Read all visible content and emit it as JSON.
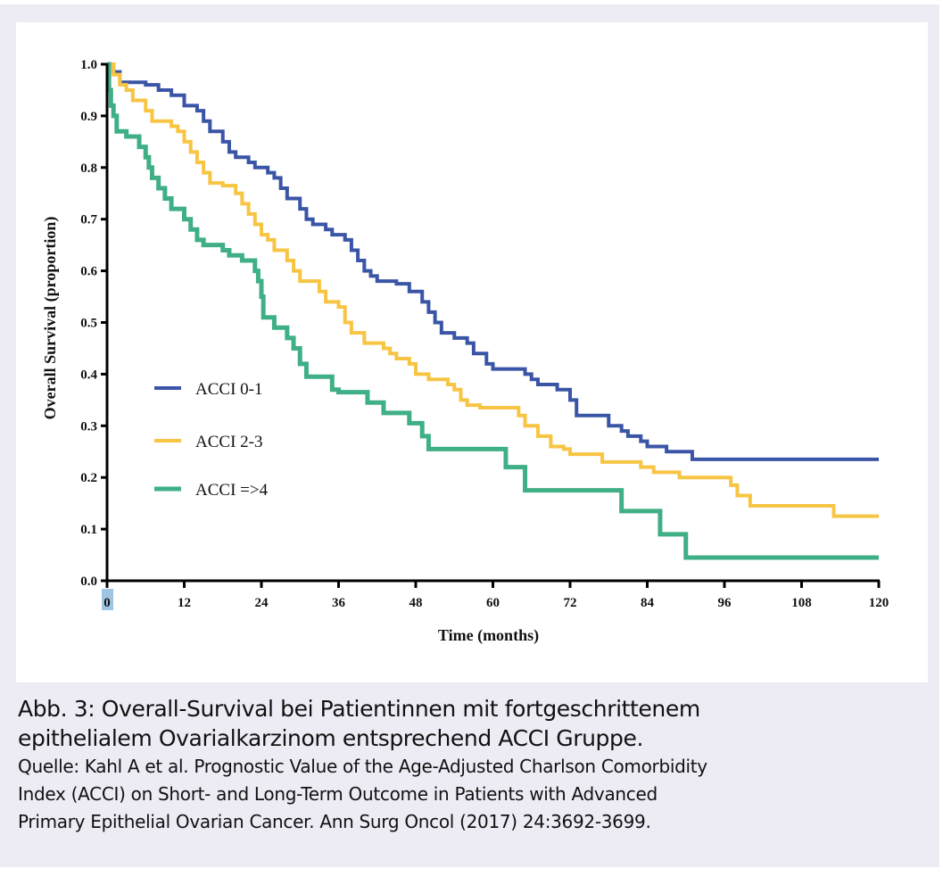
{
  "figure": {
    "caption_title_line1": "Abb. 3: Overall-Survival bei Patientinnen mit fortgeschrittenem",
    "caption_title_line2": "epithelialem Ovarialkarzinom entsprechend ACCI Gruppe.",
    "source_line1": "Quelle: Kahl A et al. Prognostic Value of the Age-Adjusted Charlson Comorbidity",
    "source_line2": "Index (ACCI) on Short- and Long-Term Outcome in Patients with Advanced",
    "source_line3": "Primary Epithelial Ovarian Cancer. Ann Surg Oncol (2017) 24:3692-3699."
  },
  "chart_data": {
    "type": "line",
    "subtype": "kaplan-meier-step",
    "title": "",
    "xlabel": "Time (months)",
    "ylabel": "Overall Survival (proportion)",
    "xlim": [
      0,
      120
    ],
    "ylim": [
      0.0,
      1.0
    ],
    "xticks": [
      0,
      12,
      24,
      36,
      48,
      60,
      72,
      84,
      96,
      108,
      120
    ],
    "xtick_labels": [
      "0",
      "12",
      "24",
      "36",
      "48",
      "60",
      "72",
      "84",
      "96",
      "108",
      "120"
    ],
    "yticks": [
      0.0,
      0.1,
      0.2,
      0.3,
      0.4,
      0.5,
      0.6,
      0.7,
      0.8,
      0.9,
      1.0
    ],
    "ytick_labels": [
      "0.0",
      "0.1",
      "0.2",
      "0.3",
      "0.4",
      "0.5",
      "0.6",
      "0.7",
      "0.8",
      "0.9",
      "1.0"
    ],
    "highlighted_xtick": "0",
    "grid": false,
    "legend_position": "center-left",
    "series": [
      {
        "name": "ACCI 0-1",
        "color": "#3b55a6",
        "steps": [
          [
            0,
            1.0
          ],
          [
            1,
            0.985
          ],
          [
            2,
            0.965
          ],
          [
            6,
            0.96
          ],
          [
            8,
            0.95
          ],
          [
            10,
            0.94
          ],
          [
            12,
            0.92
          ],
          [
            14,
            0.91
          ],
          [
            15,
            0.89
          ],
          [
            16,
            0.87
          ],
          [
            18,
            0.85
          ],
          [
            19,
            0.83
          ],
          [
            20,
            0.82
          ],
          [
            22,
            0.81
          ],
          [
            23,
            0.8
          ],
          [
            25,
            0.79
          ],
          [
            26,
            0.78
          ],
          [
            27,
            0.76
          ],
          [
            28,
            0.74
          ],
          [
            30,
            0.72
          ],
          [
            31,
            0.7
          ],
          [
            32,
            0.69
          ],
          [
            34,
            0.68
          ],
          [
            35,
            0.67
          ],
          [
            37,
            0.66
          ],
          [
            38,
            0.64
          ],
          [
            39,
            0.62
          ],
          [
            40,
            0.6
          ],
          [
            41,
            0.59
          ],
          [
            42,
            0.58
          ],
          [
            45,
            0.575
          ],
          [
            47,
            0.56
          ],
          [
            49,
            0.54
          ],
          [
            50,
            0.52
          ],
          [
            51,
            0.5
          ],
          [
            52,
            0.48
          ],
          [
            54,
            0.47
          ],
          [
            56,
            0.46
          ],
          [
            57,
            0.44
          ],
          [
            59,
            0.42
          ],
          [
            60,
            0.41
          ],
          [
            65,
            0.4
          ],
          [
            66,
            0.39
          ],
          [
            67,
            0.38
          ],
          [
            70,
            0.37
          ],
          [
            72,
            0.35
          ],
          [
            73,
            0.32
          ],
          [
            78,
            0.3
          ],
          [
            80,
            0.29
          ],
          [
            81,
            0.28
          ],
          [
            83,
            0.27
          ],
          [
            84,
            0.26
          ],
          [
            87,
            0.25
          ],
          [
            91,
            0.235
          ],
          [
            120,
            0.235
          ]
        ]
      },
      {
        "name": "ACCI 2-3",
        "color": "#f7c543",
        "steps": [
          [
            0,
            1.0
          ],
          [
            1,
            0.98
          ],
          [
            2,
            0.96
          ],
          [
            3,
            0.95
          ],
          [
            4,
            0.93
          ],
          [
            6,
            0.91
          ],
          [
            7,
            0.89
          ],
          [
            10,
            0.88
          ],
          [
            11,
            0.87
          ],
          [
            12,
            0.85
          ],
          [
            13,
            0.83
          ],
          [
            14,
            0.81
          ],
          [
            15,
            0.79
          ],
          [
            16,
            0.77
          ],
          [
            18,
            0.765
          ],
          [
            20,
            0.75
          ],
          [
            21,
            0.73
          ],
          [
            22,
            0.71
          ],
          [
            23,
            0.69
          ],
          [
            24,
            0.67
          ],
          [
            25,
            0.66
          ],
          [
            26,
            0.64
          ],
          [
            28,
            0.62
          ],
          [
            29,
            0.6
          ],
          [
            30,
            0.58
          ],
          [
            33,
            0.56
          ],
          [
            34,
            0.54
          ],
          [
            36,
            0.53
          ],
          [
            37,
            0.5
          ],
          [
            38,
            0.48
          ],
          [
            40,
            0.46
          ],
          [
            43,
            0.45
          ],
          [
            44,
            0.44
          ],
          [
            45,
            0.43
          ],
          [
            47,
            0.42
          ],
          [
            48,
            0.4
          ],
          [
            50,
            0.39
          ],
          [
            53,
            0.38
          ],
          [
            54,
            0.37
          ],
          [
            55,
            0.35
          ],
          [
            56,
            0.34
          ],
          [
            58,
            0.335
          ],
          [
            64,
            0.32
          ],
          [
            65,
            0.3
          ],
          [
            67,
            0.28
          ],
          [
            69,
            0.26
          ],
          [
            71,
            0.255
          ],
          [
            72,
            0.245
          ],
          [
            77,
            0.23
          ],
          [
            83,
            0.22
          ],
          [
            85,
            0.21
          ],
          [
            89,
            0.2
          ],
          [
            97,
            0.185
          ],
          [
            98,
            0.165
          ],
          [
            100,
            0.145
          ],
          [
            113,
            0.125
          ],
          [
            120,
            0.125
          ]
        ]
      },
      {
        "name": "ACCI =>4",
        "color": "#3faf85",
        "steps": [
          [
            0,
            1.0
          ],
          [
            0.3,
            0.95
          ],
          [
            0.6,
            0.92
          ],
          [
            1,
            0.9
          ],
          [
            1.5,
            0.87
          ],
          [
            3,
            0.86
          ],
          [
            5,
            0.84
          ],
          [
            6,
            0.82
          ],
          [
            6.5,
            0.8
          ],
          [
            7,
            0.78
          ],
          [
            8,
            0.76
          ],
          [
            9,
            0.74
          ],
          [
            10,
            0.72
          ],
          [
            12,
            0.7
          ],
          [
            13,
            0.68
          ],
          [
            14,
            0.66
          ],
          [
            15,
            0.65
          ],
          [
            18,
            0.64
          ],
          [
            19,
            0.63
          ],
          [
            21,
            0.62
          ],
          [
            23,
            0.6
          ],
          [
            23.5,
            0.58
          ],
          [
            24,
            0.55
          ],
          [
            24.3,
            0.51
          ],
          [
            26,
            0.49
          ],
          [
            28,
            0.47
          ],
          [
            29,
            0.45
          ],
          [
            30,
            0.42
          ],
          [
            31,
            0.395
          ],
          [
            35,
            0.37
          ],
          [
            36,
            0.365
          ],
          [
            40.5,
            0.345
          ],
          [
            43,
            0.325
          ],
          [
            47,
            0.305
          ],
          [
            49,
            0.28
          ],
          [
            50,
            0.255
          ],
          [
            62,
            0.22
          ],
          [
            65,
            0.175
          ],
          [
            80,
            0.135
          ],
          [
            86,
            0.09
          ],
          [
            90,
            0.045
          ],
          [
            120,
            0.045
          ]
        ]
      }
    ]
  }
}
